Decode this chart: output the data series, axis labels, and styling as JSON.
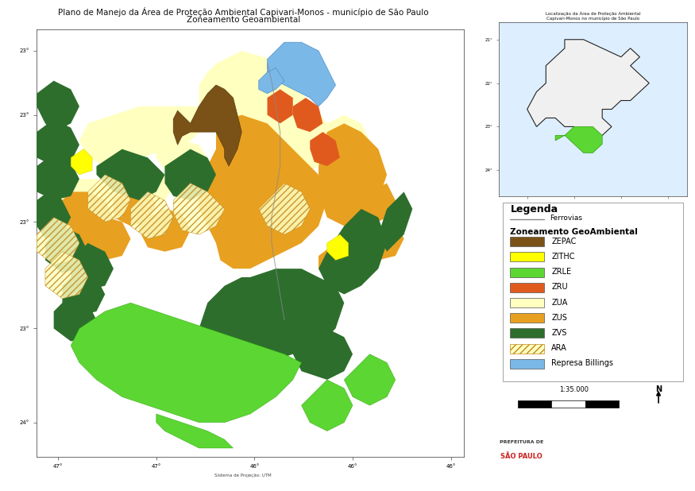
{
  "title_line1": "Plano de Manejo da Área de Proteção Ambiental Capivari-Monos - município de São Paulo",
  "title_line2": "Zoneamento Geoambiental",
  "background_color": "#ffffff",
  "map_bg_color": "#ffffff",
  "legend_title": "Legenda",
  "legend_subtitle": "Zoneamento GeoAmbiental",
  "legend_ferrovias": "Ferrovias",
  "legend_items": [
    {
      "label": "ZEPAC",
      "color": "#7a5218",
      "hatch": null
    },
    {
      "label": "ZITHC",
      "color": "#ffff00",
      "hatch": null
    },
    {
      "label": "ZRLE",
      "color": "#5cd632",
      "hatch": null
    },
    {
      "label": "ZRU",
      "color": "#e05a1e",
      "hatch": null
    },
    {
      "label": "ZUA",
      "color": "#ffffc0",
      "hatch": null
    },
    {
      "label": "ZUS",
      "color": "#e8a020",
      "hatch": null
    },
    {
      "label": "ZVS",
      "color": "#2d6e2d",
      "hatch": null
    },
    {
      "label": "ARA",
      "color": "#ffffc0",
      "hatch": "////"
    },
    {
      "label": "Represa Billings",
      "color": "#7ab8e8",
      "hatch": null
    }
  ],
  "inset_title_line1": "Localização da Área de Proteção Ambiental",
  "inset_title_line2": "Capivari-Monos no município de São Paulo",
  "scale_text": "1:35.000",
  "figsize": [
    8.75,
    6.18
  ],
  "dpi": 100
}
